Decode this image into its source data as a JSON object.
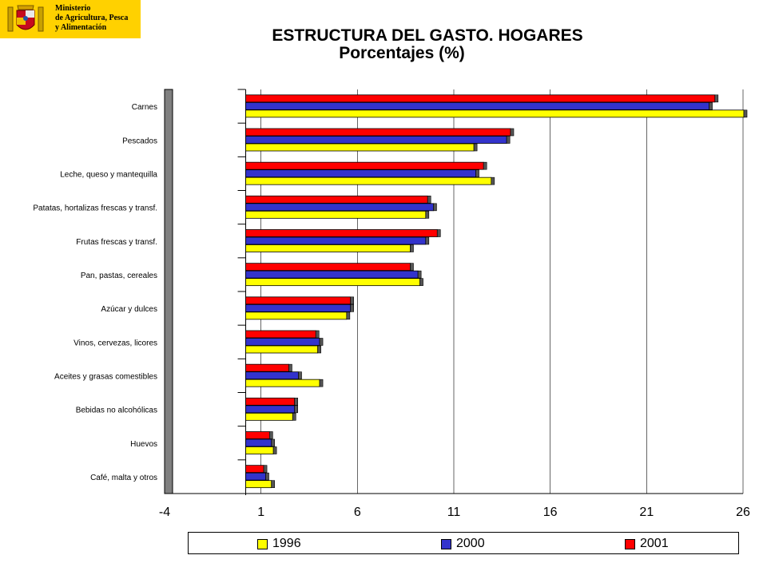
{
  "logo": {
    "ministry_lines": [
      "Ministerio",
      "de Agricultura, Pesca",
      "y Alimentación"
    ],
    "crest_icon": "spain-coat-of-arms-icon"
  },
  "colors": {
    "1996": "#ffff00",
    "2000": "#3333cc",
    "2001": "#ff0000",
    "background": "#ffffff"
  },
  "chart_data": {
    "type": "bar",
    "orientation": "horizontal",
    "title": "ESTRUCTURA DEL GASTO. HOGARES",
    "subtitle": "Porcentajes (%)",
    "categories": [
      "Carnes",
      "Pescados",
      "Leche, queso y mantequilla",
      "Patatas, hortalizas frescas y transf.",
      "Frutas frescas y transf.",
      "Pan, pastas, cereales",
      "Azúcar y dulces",
      "Vinos, cervezas, licores",
      "Aceites y grasas comestibles",
      "Bebidas no alcohólicas",
      "Huevos",
      "Café, malta y otros"
    ],
    "series": [
      {
        "name": "2001",
        "values": [
          24.5,
          13.9,
          12.5,
          9.6,
          10.1,
          8.7,
          5.6,
          3.8,
          2.4,
          2.7,
          1.4,
          1.1
        ]
      },
      {
        "name": "2000",
        "values": [
          24.2,
          13.7,
          12.1,
          9.9,
          9.5,
          9.1,
          5.6,
          4.0,
          2.9,
          2.7,
          1.5,
          1.2
        ]
      },
      {
        "name": "1996",
        "values": [
          26.0,
          12.0,
          12.9,
          9.5,
          8.7,
          9.2,
          5.4,
          3.9,
          4.0,
          2.6,
          1.6,
          1.5
        ]
      }
    ],
    "xlim": [
      -4,
      26
    ],
    "xticks": [
      "-4",
      "1",
      "6",
      "11",
      "16",
      "21",
      "26"
    ],
    "grid": "vertical",
    "legend": {
      "position": "bottom",
      "entries": [
        "1996",
        "2000",
        "2001"
      ]
    }
  }
}
